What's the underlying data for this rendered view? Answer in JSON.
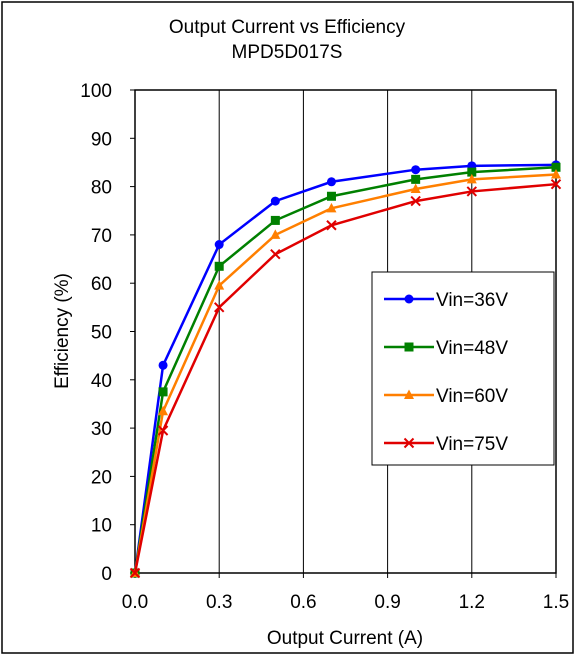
{
  "chart_data": {
    "type": "line",
    "title": "Output Current vs Efficiency",
    "subtitle": "MPD5D017S",
    "xlabel": "Output Current (A)",
    "ylabel": "Efficiency (%)",
    "xlim": [
      0,
      1.5
    ],
    "ylim": [
      0,
      100
    ],
    "x_ticks": [
      "0.0",
      "0.3",
      "0.6",
      "0.9",
      "1.2",
      "1.5"
    ],
    "y_ticks": [
      "0",
      "10",
      "20",
      "30",
      "40",
      "50",
      "60",
      "70",
      "80",
      "90",
      "100"
    ],
    "grid": "vertical",
    "legend_position": "right",
    "x": [
      0,
      0.1,
      0.3,
      0.5,
      0.7,
      1.0,
      1.2,
      1.5
    ],
    "series": [
      {
        "name": "Vin=36V",
        "color": "#0000ff",
        "marker": "circle",
        "values": [
          0,
          43,
          68,
          77,
          81,
          83.5,
          84.3,
          84.5
        ]
      },
      {
        "name": "Vin=48V",
        "color": "#008000",
        "marker": "square",
        "values": [
          0,
          37.5,
          63.5,
          73,
          78,
          81.5,
          83,
          84
        ]
      },
      {
        "name": "Vin=60V",
        "color": "#ff7f00",
        "marker": "triangle",
        "values": [
          0,
          33.5,
          59.5,
          70,
          75.5,
          79.5,
          81.5,
          82.5
        ]
      },
      {
        "name": "Vin=75V",
        "color": "#e00000",
        "marker": "x",
        "values": [
          0,
          29.5,
          55,
          66,
          72,
          77,
          79,
          80.5
        ]
      }
    ]
  }
}
